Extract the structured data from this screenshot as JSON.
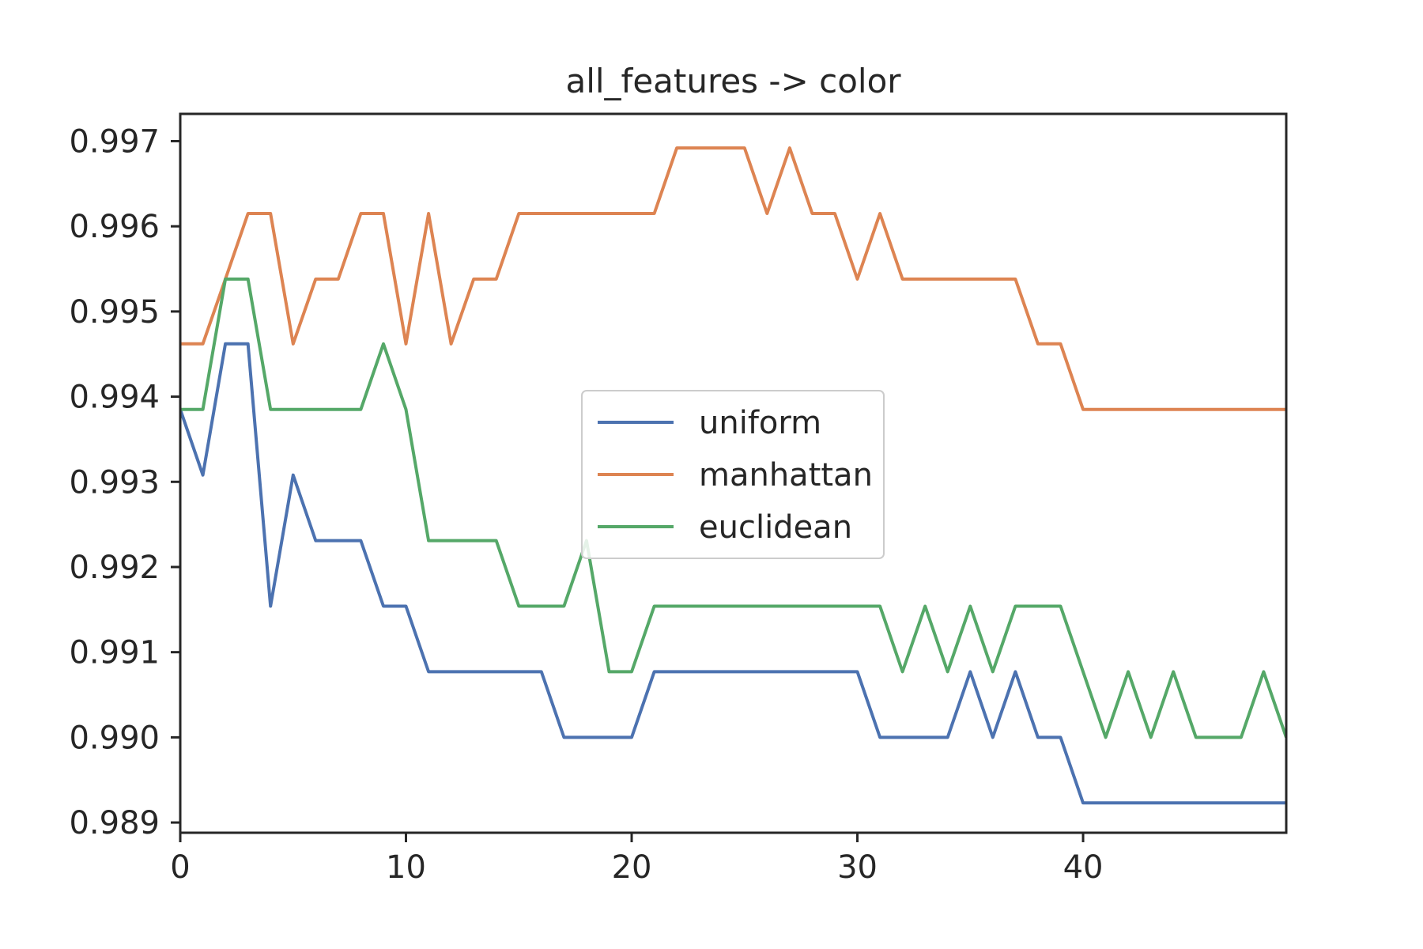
{
  "chart_data": {
    "type": "line",
    "title": "all_features -> color",
    "xlabel": "",
    "ylabel": "",
    "xlim": [
      0,
      49
    ],
    "ylim": [
      0.98888,
      0.99732
    ],
    "x_ticks": [
      0,
      10,
      20,
      30,
      40
    ],
    "x_tick_labels": [
      "0",
      "10",
      "20",
      "30",
      "40"
    ],
    "y_ticks": [
      0.989,
      0.99,
      0.991,
      0.992,
      0.993,
      0.994,
      0.995,
      0.996,
      0.997
    ],
    "y_tick_labels": [
      "0.989",
      "0.990",
      "0.991",
      "0.992",
      "0.993",
      "0.994",
      "0.995",
      "0.996",
      "0.997"
    ],
    "grid": false,
    "legend": {
      "placement": "center",
      "entries": [
        "uniform",
        "manhattan",
        "euclidean"
      ]
    },
    "x": [
      0,
      1,
      2,
      3,
      4,
      5,
      6,
      7,
      8,
      9,
      10,
      11,
      12,
      13,
      14,
      15,
      16,
      17,
      18,
      19,
      20,
      21,
      22,
      23,
      24,
      25,
      26,
      27,
      28,
      29,
      30,
      31,
      32,
      33,
      34,
      35,
      36,
      37,
      38,
      39,
      40,
      41,
      42,
      43,
      44,
      45,
      46,
      47,
      48,
      49
    ],
    "series": [
      {
        "name": "uniform",
        "color": "#4c72b0",
        "values": [
          0.99385,
          0.99308,
          0.99462,
          0.99462,
          0.99154,
          0.99308,
          0.99231,
          0.99231,
          0.99231,
          0.99154,
          0.99154,
          0.99077,
          0.99077,
          0.99077,
          0.99077,
          0.99077,
          0.99077,
          0.99,
          0.99,
          0.99,
          0.99,
          0.99077,
          0.99077,
          0.99077,
          0.99077,
          0.99077,
          0.99077,
          0.99077,
          0.99077,
          0.99077,
          0.99077,
          0.99,
          0.99,
          0.99,
          0.99,
          0.99077,
          0.99,
          0.99077,
          0.99,
          0.99,
          0.98923,
          0.98923,
          0.98923,
          0.98923,
          0.98923,
          0.98923,
          0.98923,
          0.98923,
          0.98923,
          0.98923
        ]
      },
      {
        "name": "manhattan",
        "color": "#dd8452",
        "values": [
          0.99462,
          0.99462,
          0.99538,
          0.99615,
          0.99615,
          0.99462,
          0.99538,
          0.99538,
          0.99615,
          0.99615,
          0.99462,
          0.99615,
          0.99462,
          0.99538,
          0.99538,
          0.99615,
          0.99615,
          0.99615,
          0.99615,
          0.99615,
          0.99615,
          0.99615,
          0.99692,
          0.99692,
          0.99692,
          0.99692,
          0.99615,
          0.99692,
          0.99615,
          0.99615,
          0.99538,
          0.99615,
          0.99538,
          0.99538,
          0.99538,
          0.99538,
          0.99538,
          0.99538,
          0.99462,
          0.99462,
          0.99385,
          0.99385,
          0.99385,
          0.99385,
          0.99385,
          0.99385,
          0.99385,
          0.99385,
          0.99385,
          0.99385
        ]
      },
      {
        "name": "euclidean",
        "color": "#55a868",
        "values": [
          0.99385,
          0.99385,
          0.99538,
          0.99538,
          0.99385,
          0.99385,
          0.99385,
          0.99385,
          0.99385,
          0.99462,
          0.99385,
          0.99231,
          0.99231,
          0.99231,
          0.99231,
          0.99154,
          0.99154,
          0.99154,
          0.99231,
          0.99077,
          0.99077,
          0.99154,
          0.99154,
          0.99154,
          0.99154,
          0.99154,
          0.99154,
          0.99154,
          0.99154,
          0.99154,
          0.99154,
          0.99154,
          0.99077,
          0.99154,
          0.99077,
          0.99154,
          0.99077,
          0.99154,
          0.99154,
          0.99154,
          0.99077,
          0.99,
          0.99077,
          0.99,
          0.99077,
          0.99,
          0.99,
          0.99,
          0.99077,
          0.99
        ]
      }
    ]
  }
}
